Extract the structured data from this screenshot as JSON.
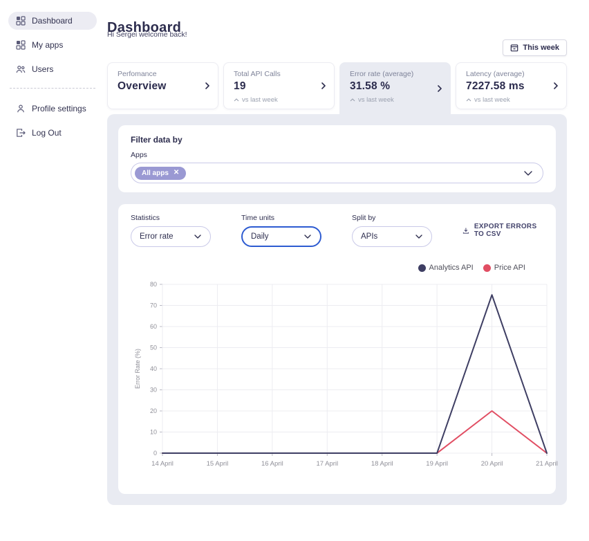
{
  "sidebar": {
    "items": [
      {
        "label": "Dashboard",
        "icon": "grid-icon",
        "active": true
      },
      {
        "label": "My apps",
        "icon": "grid-icon",
        "active": false
      },
      {
        "label": "Users",
        "icon": "users-icon",
        "active": false
      },
      {
        "label": "Profile settings",
        "icon": "person-icon",
        "active": false
      },
      {
        "label": "Log Out",
        "icon": "logout-icon",
        "active": false
      }
    ]
  },
  "header": {
    "title": "Dashboard",
    "greeting": "Hi Sergei welcome back!",
    "period_button": {
      "label": "This week",
      "icon": "calendar-icon"
    }
  },
  "stat_cards": [
    {
      "label": "Perfomance",
      "value": "Overview",
      "trend": null,
      "selected": false
    },
    {
      "label": "Total API Calls",
      "value": "19",
      "trend": "vs last week",
      "selected": false
    },
    {
      "label": "Error rate (average)",
      "value": "31.58 %",
      "trend": "vs last week",
      "selected": true
    },
    {
      "label": "Latency (average)",
      "value": "7227.58 ms",
      "trend": "vs last week",
      "selected": false
    }
  ],
  "filter": {
    "heading": "Filter data by",
    "apps_label": "Apps",
    "selected_chip": "All apps"
  },
  "controls": {
    "statistics": {
      "label": "Statistics",
      "value": "Error rate"
    },
    "time_units": {
      "label": "Time units",
      "value": "Daily",
      "focused": true
    },
    "split_by": {
      "label": "Split by",
      "value": "APIs"
    },
    "export_label": "EXPORT ERRORS TO CSV"
  },
  "chart_data": {
    "type": "line",
    "x": [
      "14 April",
      "15 April",
      "16 April",
      "17 April",
      "18 April",
      "19 April",
      "20 April",
      "21 April"
    ],
    "series": [
      {
        "name": "Analytics API",
        "color": "#3e3e63",
        "values": [
          0,
          0,
          0,
          0,
          0,
          0,
          75,
          0
        ]
      },
      {
        "name": "Price API",
        "color": "#e14e63",
        "values": [
          0,
          0,
          0,
          0,
          0,
          0,
          20,
          0
        ]
      }
    ],
    "xlabel": "",
    "ylabel": "Error Rate (%)",
    "ylim": [
      0,
      80
    ],
    "yticks": [
      0,
      10,
      20,
      30,
      40,
      50,
      60,
      70,
      80
    ],
    "grid": true,
    "legend_position": "top-right"
  },
  "colors": {
    "accent_blue": "#2d5bd1",
    "chip_purple": "#9a99d3",
    "panel_bg": "#e9ebf2",
    "navy_text": "#2d2d4e",
    "series_analytics": "#3e3e63",
    "series_price": "#e14e63"
  }
}
